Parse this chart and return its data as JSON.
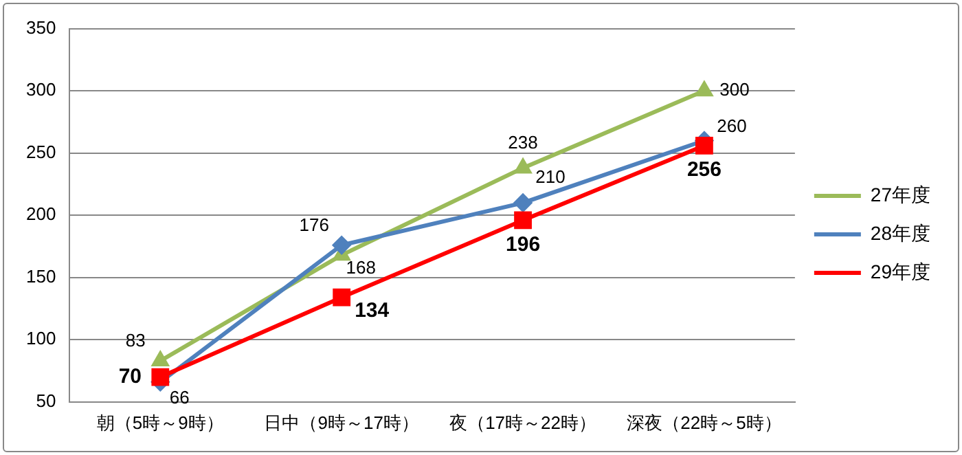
{
  "chart_data": {
    "type": "line",
    "categories": [
      "朝（5時～9時）",
      "日中（9時～17時）",
      "夜（17時～22時）",
      "深夜（22時～5時）"
    ],
    "series": [
      {
        "name": "27年度",
        "color": "#9bbb59",
        "marker": "triangle",
        "values": [
          83,
          168,
          238,
          300
        ]
      },
      {
        "name": "28年度",
        "color": "#4f81bd",
        "marker": "diamond",
        "values": [
          66,
          176,
          210,
          260
        ]
      },
      {
        "name": "29年度",
        "color": "#ff0000",
        "marker": "square",
        "values": [
          70,
          134,
          196,
          256
        ]
      }
    ],
    "ylim": [
      50,
      350
    ],
    "yticks": [
      50,
      100,
      150,
      200,
      250,
      300,
      350
    ],
    "grid": "y",
    "legend": "right",
    "data_labels": true,
    "line_style": "solid"
  }
}
